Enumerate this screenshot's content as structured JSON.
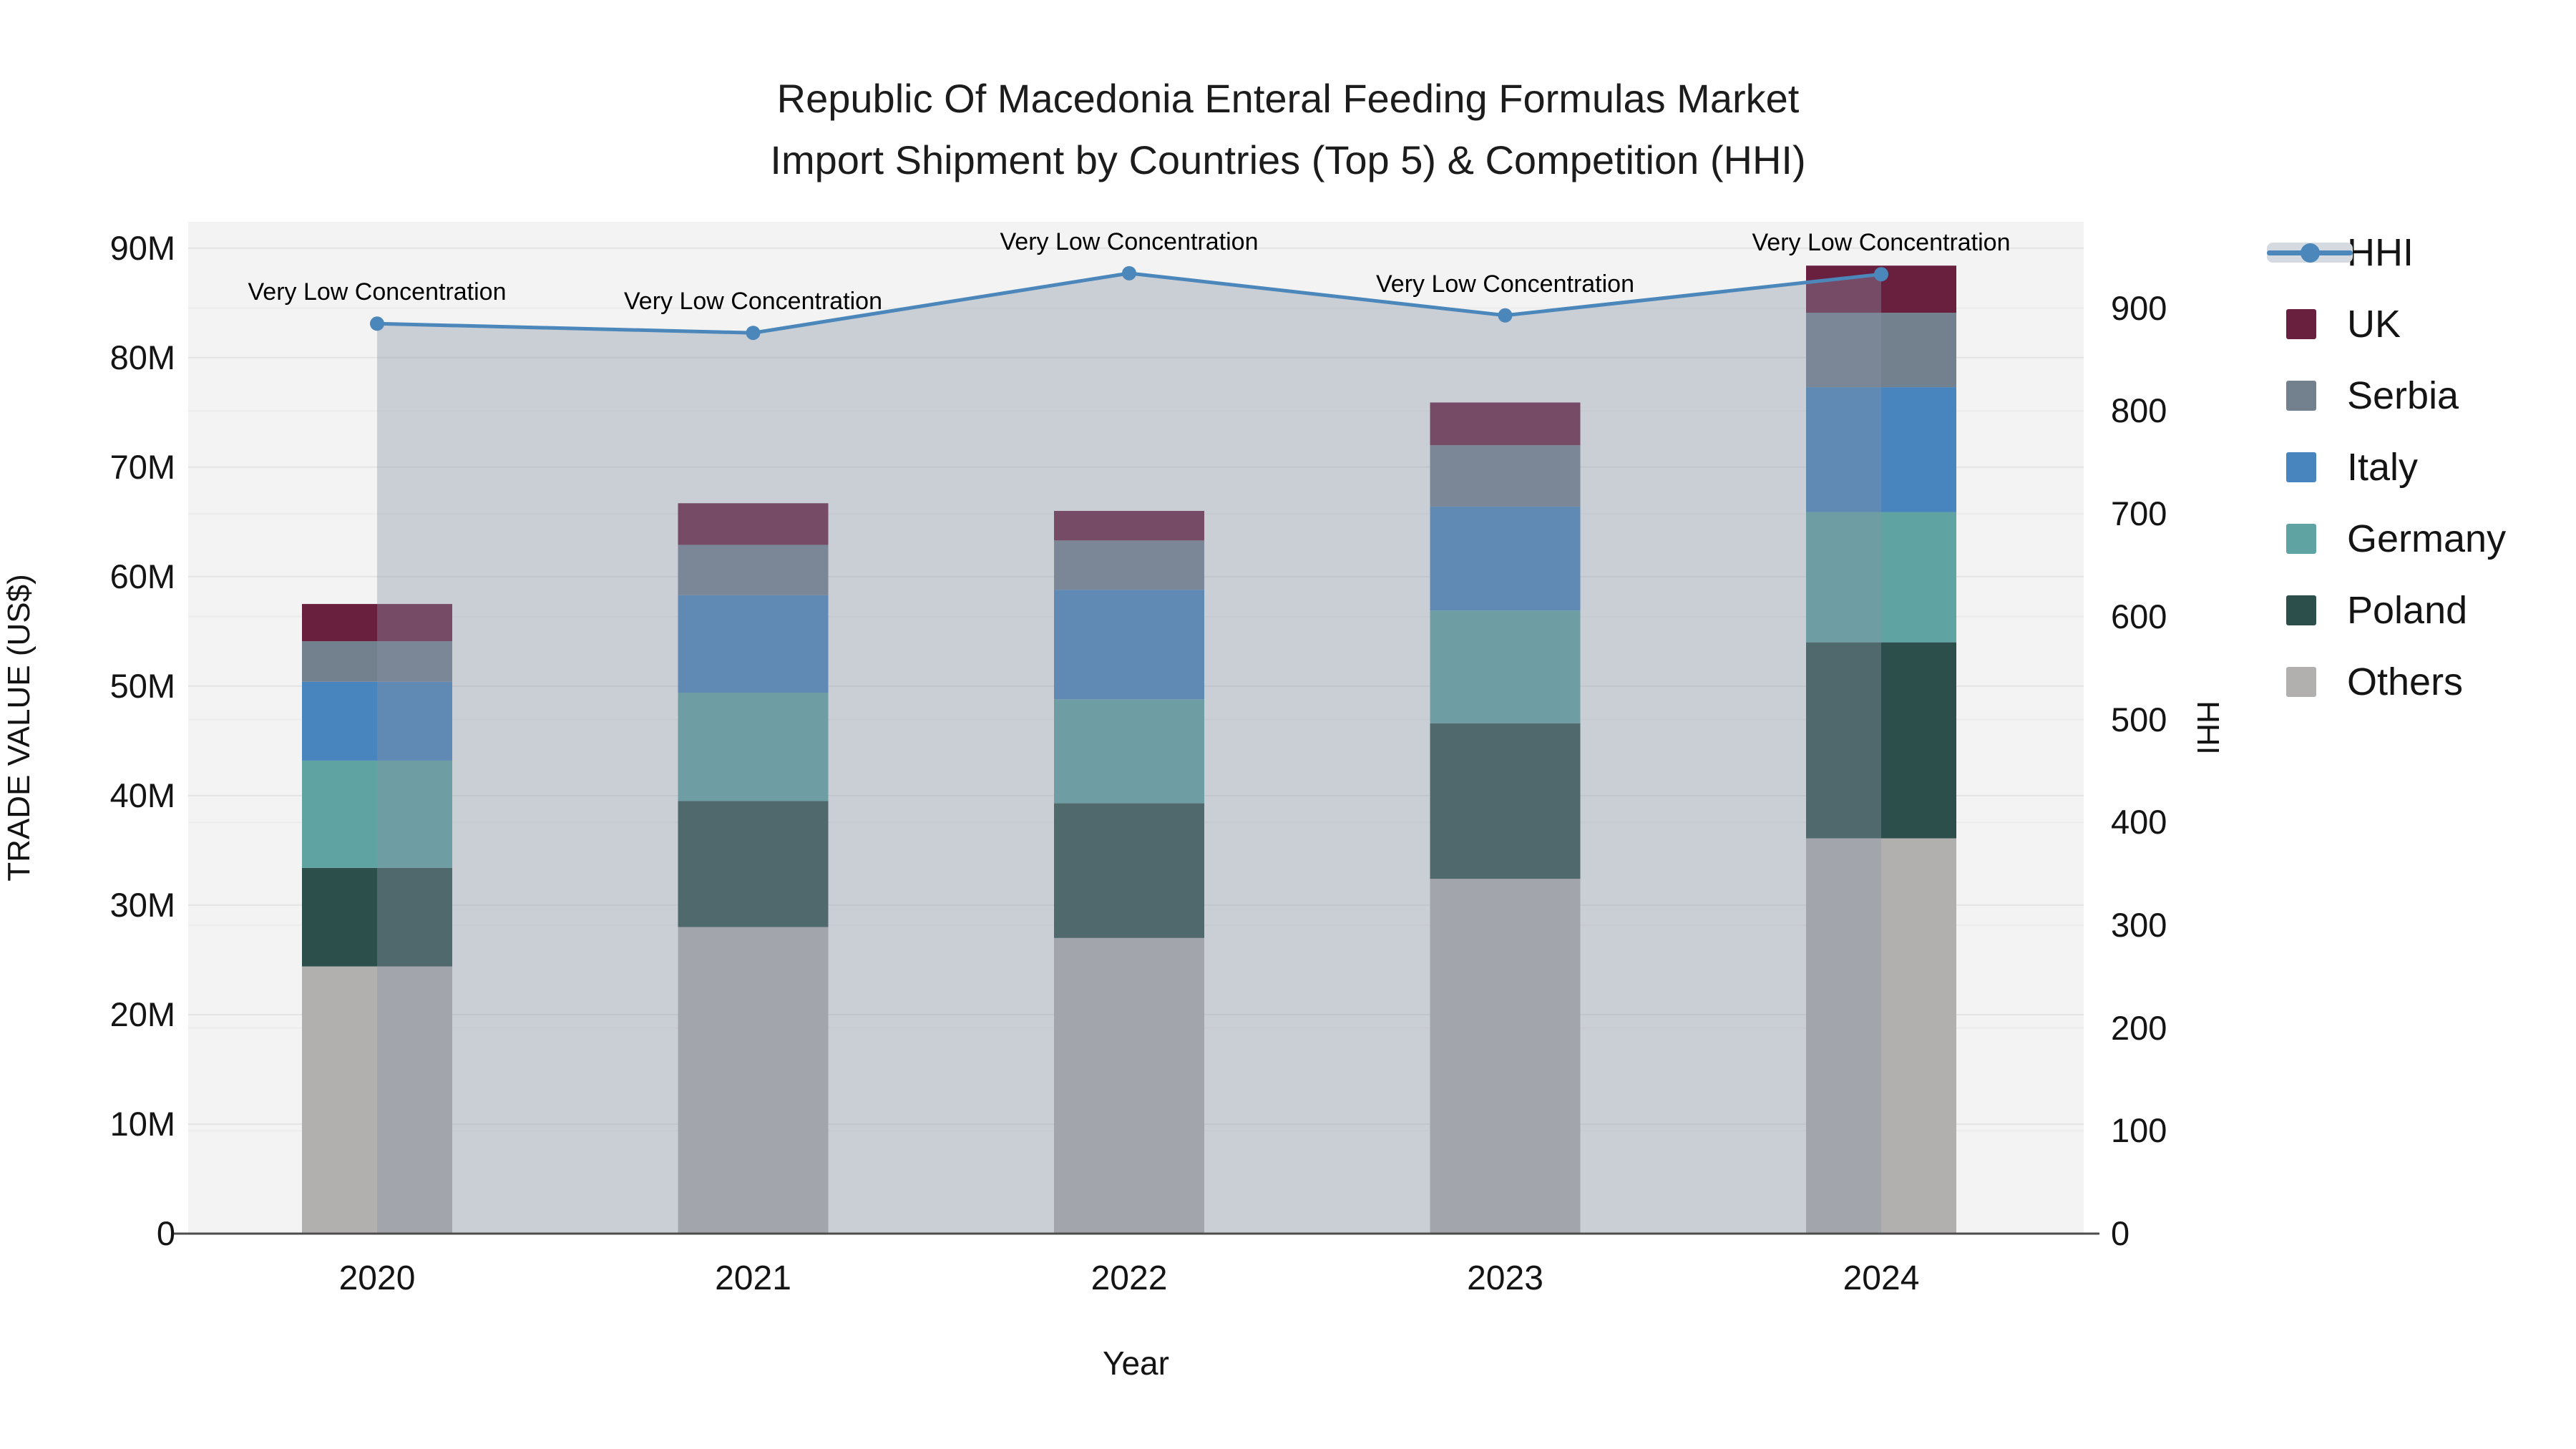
{
  "title": {
    "line1": "Republic Of Macedonia Enteral Feeding Formulas Market",
    "line2": "Import Shipment by Countries (Top 5) & Competition (HHI)"
  },
  "legend": {
    "items": [
      {
        "label": "HHI",
        "color": "#4b87ba"
      },
      {
        "label": "UK",
        "color": "#69203f"
      },
      {
        "label": "Serbia",
        "color": "#73808d"
      },
      {
        "label": "Italy",
        "color": "#4884bd"
      },
      {
        "label": "Germany",
        "color": "#60a3a3"
      },
      {
        "label": "Poland",
        "color": "#2d4f4b"
      },
      {
        "label": "Others",
        "color": "#b2b0af"
      }
    ]
  },
  "chart_data": {
    "type": "combo: stacked-bar + line",
    "categories": [
      "2020",
      "2021",
      "2022",
      "2023",
      "2024"
    ],
    "stack_bottom_to_top": [
      "Others",
      "Poland",
      "Germany",
      "Italy",
      "Serbia",
      "UK"
    ],
    "series": [
      {
        "name": "UK",
        "color": "#69203f",
        "values": [
          3.4,
          3.8,
          2.7,
          3.9,
          4.3
        ]
      },
      {
        "name": "Serbia",
        "color": "#73808d",
        "values": [
          3.7,
          4.6,
          4.5,
          5.6,
          6.8
        ]
      },
      {
        "name": "Italy",
        "color": "#4884bd",
        "values": [
          7.2,
          8.9,
          10.0,
          9.5,
          11.4
        ]
      },
      {
        "name": "Germany",
        "color": "#60a3a3",
        "values": [
          9.8,
          9.9,
          9.5,
          10.3,
          11.9
        ]
      },
      {
        "name": "Poland",
        "color": "#2d4f4b",
        "values": [
          9.0,
          11.5,
          12.3,
          14.2,
          17.9
        ]
      },
      {
        "name": "Others",
        "color": "#b2b0af",
        "values": [
          24.4,
          28.0,
          27.0,
          32.4,
          36.1
        ]
      }
    ],
    "bar_totals_musd": [
      57.5,
      66.7,
      66.0,
      75.9,
      88.4
    ],
    "line": {
      "name": "HHI",
      "color": "#4b87ba",
      "fill_color": "rgba(136,148,166,0.38)",
      "values": [
        885,
        876,
        934,
        893,
        933
      ]
    },
    "annotations": [
      "Very Low Concentration",
      "Very Low Concentration",
      "Very Low Concentration",
      "Very Low Concentration",
      "Very Low Concentration"
    ],
    "xaxis": {
      "title": "Year"
    },
    "yaxis_left": {
      "title": "TRADE VALUE (US$)",
      "tick_values": [
        0,
        10,
        20,
        30,
        40,
        50,
        60,
        70,
        80,
        90
      ],
      "tick_labels": [
        "0",
        "10M",
        "20M",
        "30M",
        "40M",
        "50M",
        "60M",
        "70M",
        "80M",
        "90M"
      ],
      "range": [
        0,
        92.4
      ]
    },
    "yaxis_right": {
      "title": "HHI",
      "tick_values": [
        0,
        100,
        200,
        300,
        400,
        500,
        600,
        700,
        800,
        900
      ],
      "tick_labels": [
        "0",
        "100",
        "200",
        "300",
        "400",
        "500",
        "600",
        "700",
        "800",
        "900"
      ],
      "range": [
        0,
        984
      ]
    },
    "grid": true,
    "legend_position": "right"
  }
}
